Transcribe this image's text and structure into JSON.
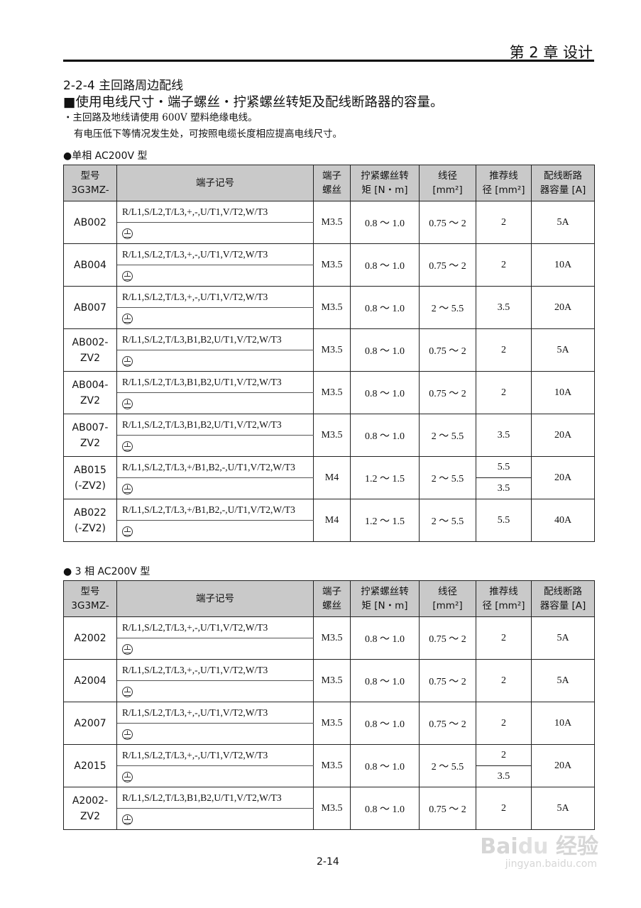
{
  "header": {
    "chapter": "第 2 章  设计"
  },
  "section_title": "2-2-4  主回路周边配线",
  "subtitle": "■使用电线尺寸・端子螺丝・拧紧螺丝转矩及配线断路器的容量。",
  "notes": [
    "・主回路及地线请使用 600V 塑料绝缘电线。",
    "有电压低下等情况发生处，可按照电缆长度相应提高电线尺寸。"
  ],
  "columns": [
    "型号\n3G3MZ-",
    "端子记号",
    "端子\n螺丝",
    "拧紧螺丝转\n矩 [N・m]",
    "线径\n[mm²]",
    "推荐线\n径 [mm²]",
    "配线断路\n器容量 [A]"
  ],
  "tables": [
    {
      "caption": "●单相 AC200V 型",
      "rows": [
        {
          "model": "AB002",
          "terminals": "R/L1,S/L2,T/L3,+,-,U/T1,V/T2,W/T3",
          "screw": "M3.5",
          "torque": "0.8 ～ 1.0",
          "wire": "0.75 ～ 2",
          "rec": [
            "2"
          ],
          "breaker": "5A"
        },
        {
          "model": "AB004",
          "terminals": "R/L1,S/L2,T/L3,+,-,U/T1,V/T2,W/T3",
          "screw": "M3.5",
          "torque": "0.8 ～ 1.0",
          "wire": "0.75 ～ 2",
          "rec": [
            "2"
          ],
          "breaker": "10A"
        },
        {
          "model": "AB007",
          "terminals": "R/L1,S/L2,T/L3,+,-,U/T1,V/T2,W/T3",
          "screw": "M3.5",
          "torque": "0.8 ～ 1.0",
          "wire": "2 ～ 5.5",
          "rec": [
            "3.5"
          ],
          "breaker": "20A"
        },
        {
          "model": "AB002-\nZV2",
          "terminals": "R/L1,S/L2,T/L3,B1,B2,U/T1,V/T2,W/T3",
          "screw": "M3.5",
          "torque": "0.8 ～ 1.0",
          "wire": "0.75 ～ 2",
          "rec": [
            "2"
          ],
          "breaker": "5A"
        },
        {
          "model": "AB004-\nZV2",
          "terminals": "R/L1,S/L2,T/L3,B1,B2,U/T1,V/T2,W/T3",
          "screw": "M3.5",
          "torque": "0.8 ～ 1.0",
          "wire": "0.75 ～ 2",
          "rec": [
            "2"
          ],
          "breaker": "10A"
        },
        {
          "model": "AB007-\nZV2",
          "terminals": "R/L1,S/L2,T/L3,B1,B2,U/T1,V/T2,W/T3",
          "screw": "M3.5",
          "torque": "0.8 ～ 1.0",
          "wire": "2 ～ 5.5",
          "rec": [
            "3.5"
          ],
          "breaker": "20A"
        },
        {
          "model": "AB015\n(-ZV2)",
          "terminals": "R/L1,S/L2,T/L3,+/B1,B2,-,U/T1,V/T2,W/T3",
          "screw": "M4",
          "torque": "1.2 ～ 1.5",
          "wire": "2 ～ 5.5",
          "rec": [
            "5.5",
            "3.5"
          ],
          "breaker": "20A"
        },
        {
          "model": "AB022\n(-ZV2)",
          "terminals": "R/L1,S/L2,T/L3,+/B1,B2,-,U/T1,V/T2,W/T3",
          "screw": "M4",
          "torque": "1.2 ～ 1.5",
          "wire": "2 ～ 5.5",
          "rec": [
            "5.5"
          ],
          "breaker": "40A"
        }
      ]
    },
    {
      "caption": "● 3 相 AC200V 型",
      "rows": [
        {
          "model": "A2002",
          "terminals": "R/L1,S/L2,T/L3,+,-,U/T1,V/T2,W/T3",
          "screw": "M3.5",
          "torque": "0.8 ～ 1.0",
          "wire": "0.75 ～ 2",
          "rec": [
            "2"
          ],
          "breaker": "5A"
        },
        {
          "model": "A2004",
          "terminals": "R/L1,S/L2,T/L3,+,-,U/T1,V/T2,W/T3",
          "screw": "M3.5",
          "torque": "0.8 ～ 1.0",
          "wire": "0.75 ～ 2",
          "rec": [
            "2"
          ],
          "breaker": "5A"
        },
        {
          "model": "A2007",
          "terminals": "R/L1,S/L2,T/L3,+,-,U/T1,V/T2,W/T3",
          "screw": "M3.5",
          "torque": "0.8 ～ 1.0",
          "wire": "0.75 ～ 2",
          "rec": [
            "2"
          ],
          "breaker": "10A"
        },
        {
          "model": "A2015",
          "terminals": "R/L1,S/L2,T/L3,+,-,U/T1,V/T2,W/T3",
          "screw": "M3.5",
          "torque": "0.8 ～ 1.0",
          "wire": "2 ～ 5.5",
          "rec": [
            "2",
            "3.5"
          ],
          "breaker": "20A"
        },
        {
          "model": "A2002-\nZV2",
          "terminals": "R/L1,S/L2,T/L3,B1,B2,U/T1,V/T2,W/T3",
          "screw": "M3.5",
          "torque": "0.8 ～ 1.0",
          "wire": "0.75 ～ 2",
          "rec": [
            "2"
          ],
          "breaker": "5A"
        }
      ]
    }
  ],
  "page_number": "2-14",
  "watermark": {
    "logo": "Baidu 经验",
    "url": "jingyan.baidu.com"
  }
}
